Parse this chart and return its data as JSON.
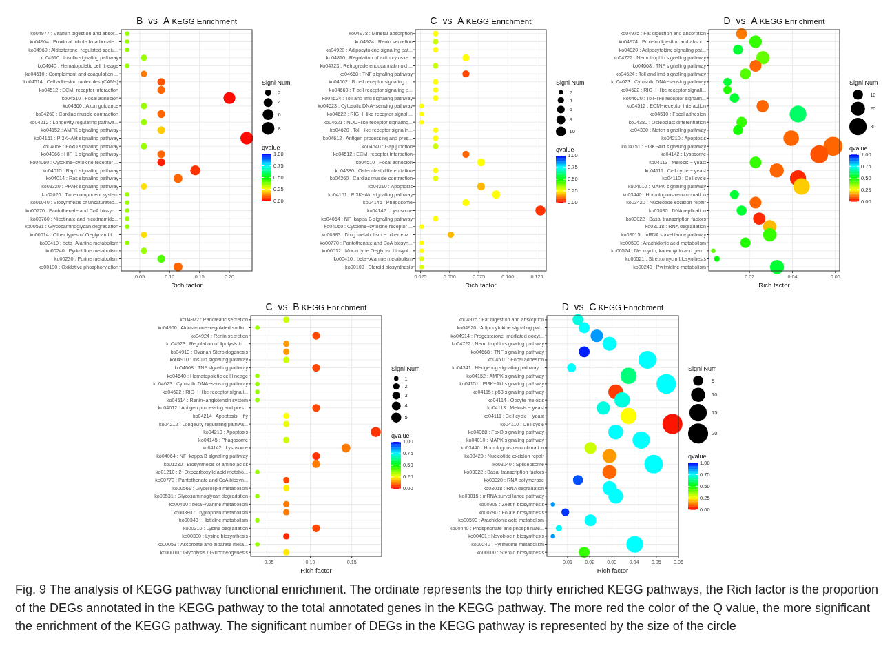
{
  "chart_data": [
    {
      "type": "bubble",
      "orientation": "horizontal",
      "title": "B_vs_A KEGG Enrichment",
      "xlabel": "Rich factor",
      "legend_title": "Signi Num",
      "clabel": "qvalue",
      "grid": true,
      "categories": [
        "ko04977 : Vitamin digestion and absor...",
        "ko04964 : Proximal tubule bicarbonate...",
        "ko04960 : Aldosterone−regulated sodiu...",
        "ko04910 : Insulin signaling pathway",
        "ko04640 : Hematopoietic cell lineage",
        "ko04610 : Complement and coagulation ...",
        "ko04514 : Cell adhesion molecules (CAMs)",
        "ko04512 : ECM−receptor interaction",
        "ko04510 : Focal adhesion",
        "ko04360 : Axon guidance",
        "ko04260 : Cardiac muscle contraction",
        "ko04212 : Longevity regulating pathwa...",
        "ko04152 : AMPK signaling pathway",
        "ko04151 : PI3K−Akt signaling pathway",
        "ko04068 : FoxO signaling pathway",
        "ko04066 : HIF−1 signaling pathway",
        "ko04060 : Cytokine−cytokine receptor ...",
        "ko04015 : Rap1 signaling pathway",
        "ko04014 : Ras signaling pathway",
        "ko03320 : PPAR signaling pathway",
        "ko02020 : Two−component system",
        "ko01040 : Biosynthesis of unsaturated...",
        "ko00770 : Pantothenate and CoA biosyn...",
        "ko00760 : Nicotinate and nicotinamide...",
        "ko00531 : Glycosaminoglycan degradation",
        "ko00514 : Other types of O−glycan bio...",
        "ko00410 : beta−Alanine metabolism",
        "ko00240 : Pyrimidine metabolism",
        "ko00230 : Purine metabolism",
        "ko00190 : Oxidative phosphorylation"
      ],
      "values": [
        0.029,
        0.029,
        0.029,
        0.057,
        0.029,
        0.057,
        0.086,
        0.086,
        0.2,
        0.057,
        0.086,
        0.057,
        0.086,
        0.229,
        0.057,
        0.086,
        0.086,
        0.143,
        0.114,
        0.057,
        0.029,
        0.029,
        0.029,
        0.029,
        0.029,
        0.057,
        0.029,
        0.057,
        0.086,
        0.114
      ],
      "sizes": [
        1,
        1,
        1,
        2,
        1,
        2,
        3,
        3,
        7,
        2,
        3,
        2,
        3,
        8,
        2,
        3,
        3,
        5,
        4,
        2,
        1,
        1,
        1,
        1,
        1,
        2,
        1,
        2,
        3,
        4
      ],
      "cvalues": [
        0.35,
        0.35,
        0.35,
        0.35,
        0.35,
        0.12,
        0.08,
        0.1,
        0.01,
        0.35,
        0.1,
        0.35,
        0.2,
        0.01,
        0.35,
        0.1,
        0.03,
        0.05,
        0.1,
        0.22,
        0.35,
        0.35,
        0.35,
        0.35,
        0.35,
        0.22,
        0.35,
        0.35,
        0.42,
        0.1
      ],
      "xlim": [
        0.019,
        0.238
      ],
      "xticks": [
        0.05,
        {
          "value": 0.1,
          "label": "0.10"
        },
        0.15,
        {
          "value": 0.2,
          "label": "0.20"
        }
      ],
      "size_legend": [
        2,
        4,
        6,
        8
      ],
      "clim": [
        0,
        1
      ],
      "cticks": [
        {
          "value": 0,
          "label": "0.00"
        },
        {
          "value": 0.25,
          "label": "0.25"
        },
        {
          "value": 0.5,
          "label": "0.50"
        },
        {
          "value": 0.75,
          "label": "0.75"
        },
        {
          "value": 1,
          "label": "1.00"
        }
      ],
      "annotations": [
        "Fig. 9 The analysis of KEGG pathway functional enrichment. The ordinate represents the top thirty enriched KEGG pathways, the Rich factor is the proportion of the DEGs annotated in the KEGG pathway to the total annotated genes in the KEGG pathway. The more red the color of the Q value, the more significant the enrichment of the KEGG pathway. The significant number of DEGs in the KEGG pathway is represented by the size of the circle"
      ]
    },
    {
      "type": "bubble",
      "orientation": "horizontal",
      "title": "C_vs_A KEGG Enrichment",
      "xlabel": "Rich factor",
      "legend_title": "Signi Num",
      "clabel": "qvalue",
      "grid": true,
      "categories": [
        "ko04978 : Mineral absorption",
        "ko04924 : Renin secretion",
        "ko04920 : Adipocytokine signaling pat...",
        "ko04810 : Regulation of actin cytoske...",
        "ko04723 : Retrograde endocannabinoid ...",
        "ko04668 : TNF signaling pathway",
        "ko04662 : B cell receptor signaling p...",
        "ko04660 : T cell receptor signaling p...",
        "ko04624 : Toll and Imd signaling pathway",
        "ko04623 : Cytosolic DNA−sensing pathway",
        "ko04622 : RIG−I−like receptor signali...",
        "ko04621 : NOD−like receptor signaling...",
        "ko04620 : Toll−like receptor signalin...",
        "ko04612 : Antigen processing and pres...",
        "ko04540 : Gap junction",
        "ko04512 : ECM−receptor interaction",
        "ko04510 : Focal adhesion",
        "ko04380 : Osteoclast differentiation",
        "ko04260 : Cardiac muscle contraction",
        "ko04210 : Apoptosis",
        "ko04151 : PI3K−Akt signaling pathway",
        "ko04145 : Phagosome",
        "ko04142 : Lysosome",
        "ko04064 : NF−kappa B signaling pathway",
        "ko04060 : Cytokine−cytokine receptor ...",
        "ko00983 : Drug metabolism − other enz...",
        "ko00770 : Pantothenate and CoA biosyn...",
        "ko00512 : Mucin type O−glycan biosynt...",
        "ko00410 : beta−Alanine metabolism",
        "ko00100 : Steroid biosynthesis"
      ],
      "values": [
        0.038,
        0.038,
        0.038,
        0.064,
        0.038,
        0.064,
        0.038,
        0.038,
        0.038,
        0.026,
        0.026,
        0.026,
        0.038,
        0.038,
        0.038,
        0.064,
        0.077,
        0.038,
        0.038,
        0.077,
        0.09,
        0.064,
        0.128,
        0.038,
        0.026,
        0.051,
        0.026,
        0.026,
        0.026,
        0.026
      ],
      "sizes": [
        3,
        3,
        3,
        5,
        3,
        5,
        3,
        3,
        3,
        2,
        2,
        2,
        3,
        3,
        3,
        5,
        6,
        3,
        3,
        6,
        7,
        5,
        10,
        3,
        2,
        4,
        2,
        2,
        2,
        2
      ],
      "cvalues": [
        0.25,
        0.3,
        0.25,
        0.25,
        0.3,
        0.07,
        0.25,
        0.25,
        0.25,
        0.25,
        0.25,
        0.25,
        0.25,
        0.25,
        0.3,
        0.1,
        0.25,
        0.25,
        0.27,
        0.18,
        0.25,
        0.25,
        0.05,
        0.25,
        0.25,
        0.18,
        0.25,
        0.25,
        0.28,
        0.28
      ],
      "xlim": [
        0.0205,
        0.133
      ],
      "xticks": [
        0.025,
        {
          "value": 0.05,
          "label": "0.050"
        },
        0.075,
        {
          "value": 0.1,
          "label": "0.100"
        },
        0.125
      ],
      "size_legend": [
        2,
        4,
        6,
        8,
        10
      ],
      "clim": [
        0,
        1
      ],
      "cticks": [
        {
          "value": 0,
          "label": "0.00"
        },
        {
          "value": 0.25,
          "label": "0.25"
        },
        {
          "value": 0.5,
          "label": "0.50"
        },
        {
          "value": 0.75,
          "label": "0.75"
        },
        {
          "value": 1,
          "label": "1.00"
        }
      ]
    },
    {
      "type": "bubble",
      "orientation": "horizontal",
      "title": "D_vs_A KEGG Enrichment",
      "xlabel": "Rich factor",
      "legend_title": "Signi Num",
      "clabel": "qvalue",
      "grid": true,
      "categories": [
        "ko04975 : Fat digestion and absorption",
        "ko04974 : Protein digestion and absor...",
        "ko04920 : Adipocytokine signaling pat...",
        "ko04722 : Neurotrophin signaling pathway",
        "ko04668 : TNF signaling pathway",
        "ko04624 : Toll and Imd signaling pathway",
        "ko04623 : Cytosolic DNA−sensing pathway",
        "ko04622 : RIG−I−like receptor signali...",
        "ko04620 : Toll−like receptor signalin...",
        "ko04512 : ECM−receptor interaction",
        "ko04510 : Focal adhesion",
        "ko04380 : Osteoclast differentiation",
        "ko04330 : Notch signaling pathway",
        "ko04210 : Apoptosis",
        "ko04151 : PI3K−Akt signaling pathway",
        "ko04142 : Lysosome",
        "ko04113 : Meiosis − yeast",
        "ko04111 : Cell cycle − yeast",
        "ko04110 : Cell cycle",
        "ko04010 : MAPK signaling pathway",
        "ko03440 : Homologous recombination",
        "ko03420 : Nucleotide excision repair",
        "ko03030 : DNA replication",
        "ko03022 : Basal transcription factors",
        "ko03018 : RNA degradation",
        "ko03015 : mRNA surveillance pathway",
        "ko00590 : Arachidonic acid metabolism",
        "ko00524 : Neomycin, kanamycin and gen...",
        "ko00521 : Streptomycin biosynthesis",
        "ko00240 : Pyrimidine metabolism"
      ],
      "values": [
        0.0163,
        0.0228,
        0.0146,
        0.0262,
        0.0228,
        0.0181,
        0.0097,
        0.0097,
        0.013,
        0.0261,
        0.0426,
        0.0163,
        0.0146,
        0.0394,
        0.0589,
        0.0525,
        0.0228,
        0.0327,
        0.0426,
        0.0442,
        0.013,
        0.0228,
        0.0163,
        0.0245,
        0.0294,
        0.0294,
        0.0181,
        0.0031,
        0.0048,
        0.0328
      ],
      "sizes": [
        12,
        16,
        10,
        18,
        14,
        12,
        7,
        7,
        9,
        15,
        28,
        11,
        10,
        24,
        36,
        32,
        14,
        20,
        26,
        27,
        8,
        14,
        10,
        15,
        18,
        18,
        11,
        2,
        3,
        20
      ],
      "cvalues": [
        0.12,
        0.45,
        0.55,
        0.4,
        0.1,
        0.42,
        0.55,
        0.47,
        0.55,
        0.1,
        0.6,
        0.45,
        0.48,
        0.1,
        0.1,
        0.08,
        0.45,
        0.1,
        0.04,
        0.2,
        0.55,
        0.1,
        0.55,
        0.04,
        0.18,
        0.45,
        0.47,
        0.4,
        0.5,
        0.55
      ],
      "xlim": [
        0.001,
        0.062
      ],
      "xticks": [
        0.02,
        0.04,
        0.06
      ],
      "size_legend": [
        10,
        20,
        30
      ],
      "clim": [
        0,
        1
      ],
      "cticks": [
        {
          "value": 0,
          "label": "0.00"
        },
        {
          "value": 0.25,
          "label": "0.25"
        },
        {
          "value": 0.5,
          "label": "0.50"
        },
        {
          "value": 0.75,
          "label": "0.75"
        },
        {
          "value": 1,
          "label": "1.00"
        }
      ]
    },
    {
      "type": "bubble",
      "orientation": "horizontal",
      "title": "C_vs_B KEGG Enrichment",
      "xlabel": "Rich factor",
      "legend_title": "Signi Num",
      "clabel": "qvalue",
      "grid": true,
      "categories": [
        "ko04972 : Pancreatic secretion",
        "ko04960 : Aldosterone−regulated sodiu...",
        "ko04924 : Renin secretion",
        "ko04923 : Regulation of lipolysis in ...",
        "ko04913 : Ovarian Steroidogenesis",
        "ko04910 : Insulin signaling pathway",
        "ko04668 : TNF signaling pathway",
        "ko04640 : Hematopoietic cell lineage",
        "ko04623 : Cytosolic DNA−sensing pathway",
        "ko04622 : RIG−I−like receptor signali...",
        "ko04614 : Renin−angiotensin system",
        "ko04612 : Antigen processing and pres...",
        "ko04214 : Apoptosis − fly",
        "ko04212 : Longevity regulating pathwa...",
        "ko04210 : Apoptosis",
        "ko04145 : Phagosome",
        "ko04142 : Lysosome",
        "ko04064 : NF−kappa B signaling pathway",
        "ko01230 : Biosynthesis of amino acids",
        "ko01210 : 2−Oxocarboxylic acid metabo...",
        "ko00770 : Pantothenate and CoA biosyn...",
        "ko00561 : Glycerolipid metabolism",
        "ko00531 : Glycosaminoglycan degradation",
        "ko00410 : beta−Alanine metabolism",
        "ko00380 : Tryptophan metabolism",
        "ko00340 : Histidine metabolism",
        "ko00310 : Lysine degradation",
        "ko00300 : Lysine biosynthesis",
        "ko00053 : Ascorbate and aldarate meta...",
        "ko00010 : Glycolysis / Gluconeogenesis"
      ],
      "values": [
        0.071,
        0.036,
        0.107,
        0.071,
        0.071,
        0.071,
        0.107,
        0.036,
        0.036,
        0.036,
        0.036,
        0.107,
        0.071,
        0.071,
        0.179,
        0.071,
        0.143,
        0.107,
        0.107,
        0.036,
        0.071,
        0.071,
        0.036,
        0.071,
        0.071,
        0.036,
        0.107,
        0.071,
        0.036,
        0.071
      ],
      "sizes": [
        2,
        1,
        3,
        2,
        2,
        2,
        3,
        1,
        1,
        1,
        1,
        3,
        2,
        2,
        5,
        2,
        4,
        3,
        3,
        1,
        2,
        2,
        1,
        2,
        2,
        1,
        3,
        2,
        1,
        2
      ],
      "cvalues": [
        0.3,
        0.35,
        0.07,
        0.15,
        0.15,
        0.3,
        0.07,
        0.35,
        0.35,
        0.35,
        0.35,
        0.07,
        0.25,
        0.27,
        0.05,
        0.3,
        0.12,
        0.05,
        0.12,
        0.35,
        0.07,
        0.23,
        0.35,
        0.12,
        0.12,
        0.35,
        0.07,
        0.04,
        0.35,
        0.23
      ],
      "xlim": [
        0.028,
        0.186
      ],
      "xticks": [
        0.05,
        {
          "value": 0.1,
          "label": "0.10"
        },
        0.15
      ],
      "size_legend": [
        1,
        2,
        3,
        4,
        5
      ],
      "clim": [
        0,
        1
      ],
      "cticks": [
        {
          "value": 0,
          "label": "0.00"
        },
        {
          "value": 0.25,
          "label": "0.25"
        },
        {
          "value": 0.5,
          "label": "0.50"
        },
        {
          "value": 0.75,
          "label": "0.75"
        },
        {
          "value": 1,
          "label": "1.00"
        }
      ]
    },
    {
      "type": "bubble",
      "orientation": "horizontal",
      "title": "D_vs_C KEGG Enrichment",
      "xlabel": "Rich factor",
      "legend_title": "Signi Num",
      "clabel": "qvalue",
      "grid": true,
      "categories": [
        "ko04975 : Fat digestion and absorption",
        "ko04920 : Adipocytokine signaling pat...",
        "ko04914 : Progesterone−mediated oocyt...",
        "ko04722 : Neurotrophin signaling pathway",
        "ko04668 : TNF signaling pathway",
        "ko04510 : Focal adhesion",
        "ko04341 : Hedgehog signaling pathway ...",
        "ko04152 : AMPK signaling pathway",
        "ko04151 : PI3K−Akt signaling pathway",
        "ko04115 : p53 signaling pathway",
        "ko04114 : Oocyte meiosis",
        "ko04113 : Meiosis − yeast",
        "ko04111 : Cell cycle − yeast",
        "ko04110 : Cell cycle",
        "ko04068 : FoxO signaling pathway",
        "ko04010 : MAPK signaling pathway",
        "ko03440 : Homologous recombination",
        "ko03420 : Nucleotide excision repair",
        "ko03040 : Spliceosome",
        "ko03022 : Basal transcription factors",
        "ko03020 : RNA polymerase",
        "ko03018 : RNA degradation",
        "ko03015 : mRNA surveillance pathway",
        "ko00908 : Zeatin biosynthesis",
        "ko00790 : Folate biosynthesis",
        "ko00590 : Arachidonic acid metabolism",
        "ko00440 : Phosphonate and phosphinate...",
        "ko00401 : Novobiocin biosynthesis",
        "ko00240 : Pyrimidine metabolism",
        "ko00100 : Steroid biosynthesis"
      ],
      "values": [
        0.0147,
        0.0175,
        0.0232,
        0.0289,
        0.0175,
        0.046,
        0.0118,
        0.0375,
        0.0545,
        0.0317,
        0.0346,
        0.0261,
        0.0375,
        0.0573,
        0.0317,
        0.0432,
        0.0203,
        0.0289,
        0.0488,
        0.0289,
        0.0147,
        0.0289,
        0.0317,
        0.0034,
        0.009,
        0.0203,
        0.0061,
        0.0034,
        0.0403,
        0.0175
      ],
      "sizes": [
        6,
        6,
        8,
        10,
        6,
        16,
        4,
        13,
        19,
        11,
        12,
        9,
        13,
        20,
        11,
        15,
        7,
        10,
        17,
        10,
        5,
        10,
        11,
        1,
        3,
        7,
        2,
        1,
        14,
        6
      ],
      "cvalues": [
        0.72,
        0.75,
        0.85,
        0.75,
        0.97,
        0.75,
        0.75,
        0.62,
        0.75,
        0.06,
        0.72,
        0.72,
        0.25,
        0.02,
        0.75,
        0.75,
        0.3,
        0.15,
        0.75,
        0.1,
        0.92,
        0.75,
        0.75,
        0.85,
        0.95,
        0.75,
        0.75,
        0.85,
        0.75,
        0.45
      ],
      "xlim": [
        0.0007,
        0.06
      ],
      "xticks": [
        0.01,
        0.02,
        0.03,
        0.04,
        0.05,
        0.06
      ],
      "size_legend": [
        5,
        10,
        15,
        20
      ],
      "clim": [
        0,
        1
      ],
      "cticks": [
        {
          "value": 0,
          "label": "0.00"
        },
        {
          "value": 0.25,
          "label": "0.25"
        },
        {
          "value": 0.5,
          "label": "0.50"
        },
        {
          "value": 0.75,
          "label": "0.75"
        },
        {
          "value": 1,
          "label": "1.00"
        }
      ]
    }
  ]
}
